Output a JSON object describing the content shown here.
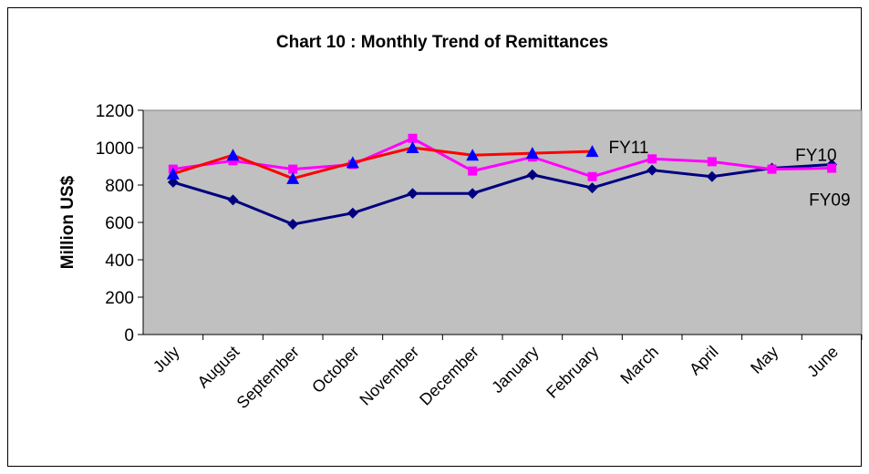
{
  "chart_data": {
    "type": "line",
    "title": "Chart 10 : Monthly Trend of Remittances",
    "y_label": "Million US$",
    "categories": [
      "July",
      "August",
      "September",
      "October",
      "November",
      "December",
      "January",
      "February",
      "March",
      "April",
      "May",
      "June"
    ],
    "series": [
      {
        "name": "FY09",
        "color": "#000080",
        "marker": "diamond",
        "marker_color": "#000080",
        "values": [
          815,
          720,
          590,
          650,
          755,
          755,
          855,
          785,
          880,
          845,
          890,
          910
        ]
      },
      {
        "name": "FY10",
        "color": "#ff00ff",
        "marker": "square",
        "marker_color": "#ff00ff",
        "values": [
          885,
          930,
          885,
          910,
          1050,
          875,
          950,
          845,
          940,
          925,
          885,
          890
        ]
      },
      {
        "name": "FY11",
        "color": "#ff0000",
        "marker": "triangle",
        "marker_color": "#0000ff",
        "values": [
          860,
          960,
          835,
          920,
          1000,
          960,
          970,
          980,
          null,
          null,
          null,
          null
        ]
      }
    ],
    "ylim": [
      0,
      1200
    ],
    "yticks": [
      0,
      200,
      400,
      600,
      800,
      1000,
      1200
    ],
    "grid": false,
    "plot_background": "#c0c0c0"
  }
}
